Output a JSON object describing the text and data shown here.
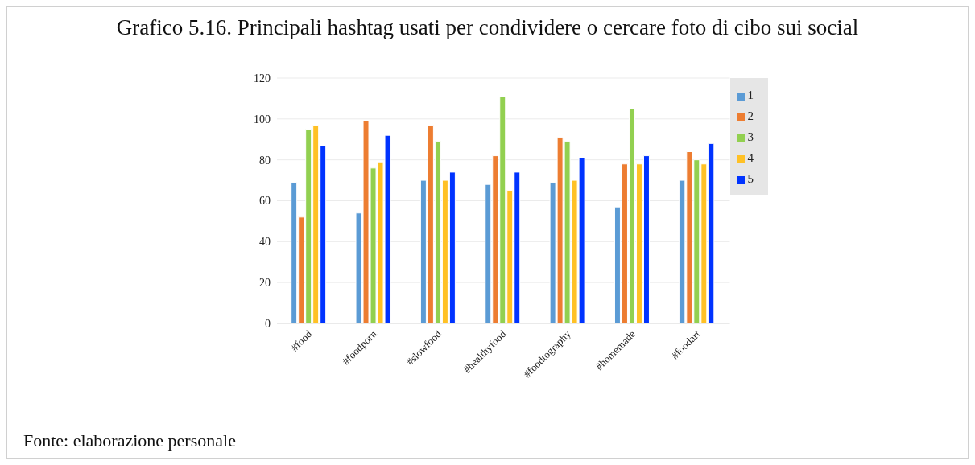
{
  "chart_data": {
    "type": "bar",
    "title": "Grafico 5.16. Principali hashtag usati per condividere o cercare foto di cibo sui social",
    "categories": [
      "#food",
      "#foodporn",
      "#slowfood",
      "#healthyfood",
      "#foodtography",
      "#homemade",
      "#foodart"
    ],
    "series": [
      {
        "name": "1",
        "color": "#5b9bd5",
        "values": [
          69,
          54,
          70,
          68,
          69,
          57,
          70
        ]
      },
      {
        "name": "2",
        "color": "#ed7d31",
        "values": [
          52,
          99,
          97,
          82,
          91,
          78,
          84
        ]
      },
      {
        "name": "3",
        "color": "#92d050",
        "values": [
          95,
          76,
          89,
          111,
          89,
          105,
          80
        ]
      },
      {
        "name": "4",
        "color": "#ffc125",
        "values": [
          97,
          79,
          70,
          65,
          70,
          78,
          78
        ]
      },
      {
        "name": "5",
        "color": "#0033ff",
        "values": [
          87,
          92,
          74,
          74,
          81,
          82,
          88
        ]
      }
    ],
    "ylim": [
      0,
      120
    ],
    "yticks": [
      0,
      20,
      40,
      60,
      80,
      100,
      120
    ],
    "grid": "y",
    "legend": "top right",
    "annotations": [
      "Fonte: elaborazione personale"
    ]
  }
}
